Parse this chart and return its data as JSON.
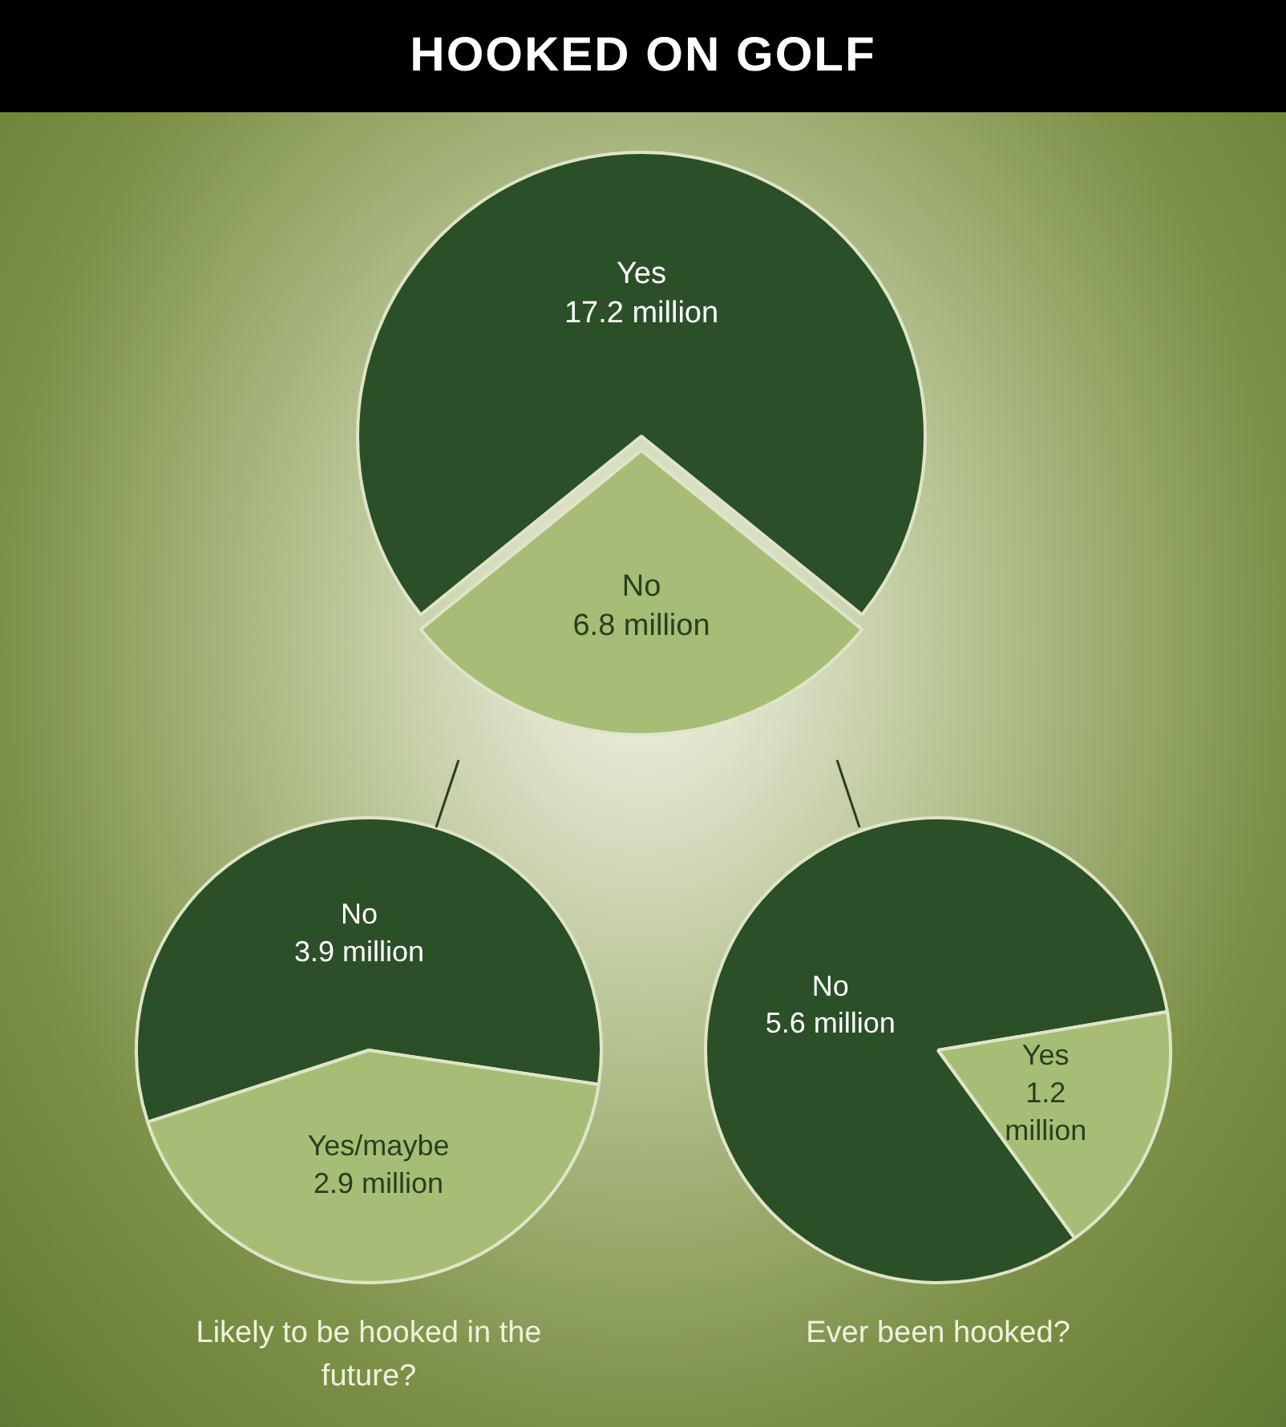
{
  "chart_data": [
    {
      "type": "pie",
      "title": "HOOKED ON GOLF",
      "categories": [
        "Yes",
        "No"
      ],
      "values": [
        17.2,
        6.8
      ],
      "value_labels": [
        "17.2 million",
        "6.8 million"
      ],
      "colors": [
        "#2b4f27",
        "#a7bd76"
      ],
      "legend": false
    },
    {
      "type": "pie",
      "xlabel": "Likely to be hooked in the future?",
      "categories": [
        "No",
        "Yes/maybe"
      ],
      "values": [
        3.9,
        2.9
      ],
      "value_labels": [
        "3.9 million",
        "2.9 million"
      ],
      "colors": [
        "#2b4f27",
        "#a7bd76"
      ],
      "legend": false
    },
    {
      "type": "pie",
      "xlabel": "Ever been hooked?",
      "categories": [
        "No",
        "Yes"
      ],
      "values": [
        5.6,
        1.2
      ],
      "value_labels": [
        "5.6 million",
        "1.2 million"
      ],
      "colors": [
        "#2b4f27",
        "#a7bd76"
      ],
      "legend": false
    }
  ]
}
